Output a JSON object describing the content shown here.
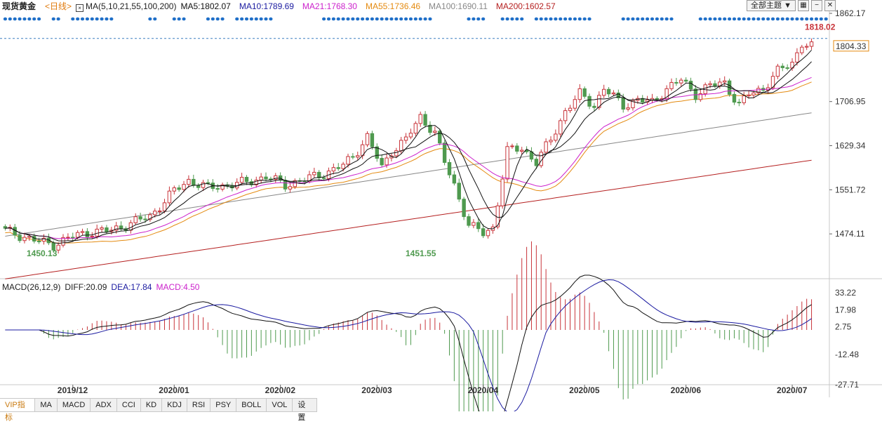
{
  "header": {
    "symbol": "现货黄金",
    "period": "<日线>",
    "ma_spec": "MA(5,10,21,55,100,200)",
    "ma5": "MA5:1802.07",
    "ma10": "MA10:1789.69",
    "ma21": "MA21:1768.30",
    "ma55": "MA55:1736.46",
    "ma100": "MA100:1690.11",
    "ma200": "MA200:1602.57",
    "theme_button": "全部主题",
    "icons": [
      "dropdown-arrow-icon",
      "grid-icon",
      "minus-icon",
      "close-icon"
    ]
  },
  "macd_header": {
    "spec": "MACD(26,12,9)",
    "diff": "DIFF:20.09",
    "dea": "DEA:17.84",
    "macd": "MACD:4.50"
  },
  "colors": {
    "up": "#c8343a",
    "down": "#4f9a4f",
    "ma5": "#111111",
    "ma10": "#111111",
    "ma21": "#cc22cc",
    "ma55": "#e48a10",
    "ma100": "#888888",
    "ma200": "#b52020",
    "diff": "#111111",
    "dea": "#1a1aa0",
    "dashed": "#3a7fc0",
    "dots": "#1f6fc8",
    "axis": "#666666"
  },
  "tabs": [
    "VIP指标",
    "MA",
    "MACD",
    "ADX",
    "CCI",
    "KD",
    "KDJ",
    "RSI",
    "PSY",
    "BOLL",
    "VOL",
    "设置"
  ],
  "chart_data": {
    "type": "candlestick",
    "price_axis": {
      "ticks": [
        "1862.17",
        "1706.95",
        "1629.34",
        "1551.72",
        "1474.11"
      ],
      "ylim": [
        1862.17,
        1396.5
      ]
    },
    "current_price": "1804.33",
    "reference_level": 1818.02,
    "annotations": {
      "high": "1818.02",
      "low1": "1450.13",
      "low2": "1451.55"
    },
    "month_labels": [
      "2019/12",
      "2020/01",
      "2020/02",
      "2020/03",
      "2020/04",
      "2020/05",
      "2020/06",
      "2020/07"
    ],
    "month_positions": [
      14,
      35,
      57,
      77,
      99,
      120,
      141,
      163
    ],
    "marker_rows_top": [
      [
        0,
        7
      ],
      [
        10,
        11
      ],
      [
        14,
        22
      ],
      [
        30,
        31
      ],
      [
        35,
        37
      ],
      [
        42,
        45
      ],
      [
        48,
        55
      ],
      [
        66,
        88
      ],
      [
        96,
        99
      ],
      [
        103,
        107
      ],
      [
        110,
        121
      ],
      [
        128,
        138
      ],
      [
        144,
        170
      ]
    ],
    "candle_count": 168,
    "macd_axis": {
      "ticks": [
        "33.22",
        "17.98",
        "2.75",
        "-12.48",
        "-27.71"
      ]
    }
  }
}
